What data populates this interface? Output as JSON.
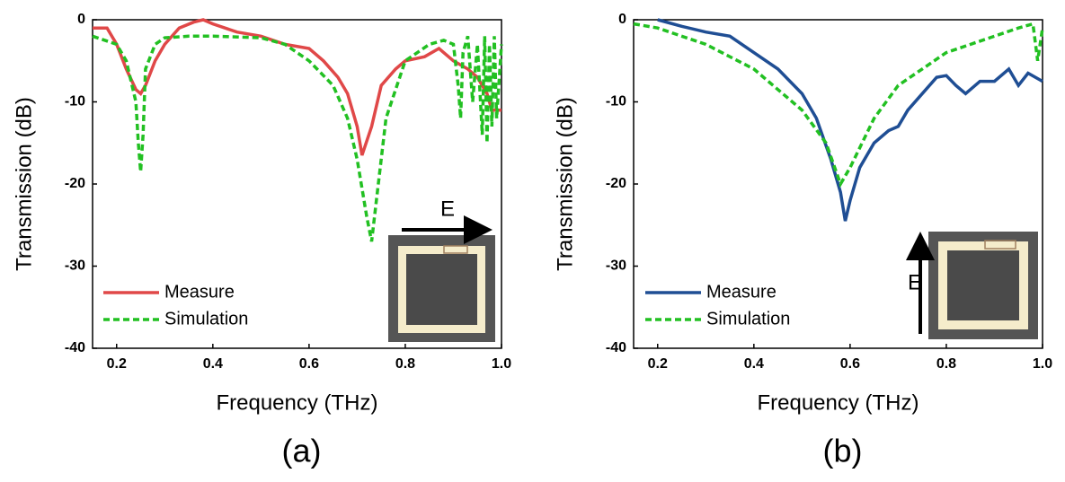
{
  "chart_data": [
    {
      "type": "line",
      "panel_label": "(a)",
      "field_label": "E",
      "xlabel": "Frequency (THz)",
      "ylabel": "Transmission (dB)",
      "xlim": [
        0.15,
        1.0
      ],
      "ylim": [
        -40,
        0
      ],
      "xticks": [
        0.2,
        0.4,
        0.6,
        0.8,
        {
          "value": 1.0,
          "label": "1.0"
        }
      ],
      "yticks": [
        -40,
        -30,
        -20,
        -10,
        0
      ],
      "series": [
        {
          "name": "Measure",
          "color": "#e04848",
          "dash": false,
          "x": [
            0.15,
            0.18,
            0.2,
            0.22,
            0.24,
            0.25,
            0.26,
            0.28,
            0.3,
            0.33,
            0.36,
            0.38,
            0.4,
            0.45,
            0.5,
            0.55,
            0.6,
            0.63,
            0.66,
            0.68,
            0.7,
            0.71,
            0.73,
            0.75,
            0.78,
            0.8,
            0.84,
            0.87,
            0.9,
            0.93,
            0.95,
            0.97,
            0.98,
            1.0
          ],
          "values": [
            -1,
            -1,
            -3,
            -6,
            -8.5,
            -9,
            -8,
            -5,
            -3,
            -1,
            -0.3,
            0,
            -0.5,
            -1.5,
            -2,
            -3,
            -3.5,
            -5,
            -7,
            -9,
            -13,
            -16.5,
            -13,
            -8,
            -6,
            -5,
            -4.5,
            -3.5,
            -5,
            -6,
            -7,
            -9,
            -11,
            -11
          ]
        },
        {
          "name": "Simulation",
          "color": "#22c022",
          "dash": true,
          "x": [
            0.15,
            0.2,
            0.22,
            0.24,
            0.245,
            0.25,
            0.255,
            0.26,
            0.28,
            0.3,
            0.35,
            0.4,
            0.5,
            0.55,
            0.6,
            0.65,
            0.68,
            0.7,
            0.72,
            0.73,
            0.74,
            0.76,
            0.8,
            0.85,
            0.88,
            0.9,
            0.91,
            0.915,
            0.92,
            0.93,
            0.94,
            0.95,
            0.96,
            0.965,
            0.97,
            0.975,
            0.98,
            0.985,
            0.99,
            1.0
          ],
          "values": [
            -2,
            -3,
            -5,
            -10,
            -15,
            -18.5,
            -14,
            -6,
            -3,
            -2.2,
            -2,
            -2,
            -2.2,
            -3,
            -5,
            -8,
            -12,
            -17,
            -24,
            -27,
            -22,
            -12,
            -5,
            -3,
            -2.5,
            -3,
            -8,
            -12,
            -4,
            -2,
            -10,
            -3,
            -14,
            -2,
            -15,
            -3,
            -13,
            -2,
            -12,
            -3
          ]
        }
      ]
    },
    {
      "type": "line",
      "panel_label": "(b)",
      "field_label": "E",
      "xlabel": "Frequency (THz)",
      "ylabel": "Transmission (dB)",
      "xlim": [
        0.15,
        1.0
      ],
      "ylim": [
        -40,
        0
      ],
      "xticks": [
        0.2,
        0.4,
        0.6,
        0.8,
        {
          "value": 1.0,
          "label": "1.0"
        }
      ],
      "yticks": [
        -40,
        -30,
        -20,
        -10,
        0
      ],
      "series": [
        {
          "name": "Measure",
          "color": "#1f4e94",
          "dash": false,
          "x": [
            0.2,
            0.25,
            0.3,
            0.35,
            0.4,
            0.45,
            0.5,
            0.53,
            0.56,
            0.58,
            0.59,
            0.6,
            0.62,
            0.65,
            0.68,
            0.7,
            0.72,
            0.75,
            0.78,
            0.8,
            0.82,
            0.84,
            0.87,
            0.9,
            0.93,
            0.95,
            0.97,
            1.0
          ],
          "values": [
            0,
            -0.8,
            -1.5,
            -2,
            -4,
            -6,
            -9,
            -12,
            -17,
            -21,
            -24.5,
            -22,
            -18,
            -15,
            -13.5,
            -13,
            -11,
            -9,
            -7,
            -6.8,
            -8,
            -9,
            -7.5,
            -7.5,
            -6,
            -8,
            -6.5,
            -7.5
          ]
        },
        {
          "name": "Simulation",
          "color": "#22c022",
          "dash": true,
          "x": [
            0.15,
            0.2,
            0.3,
            0.4,
            0.5,
            0.55,
            0.58,
            0.6,
            0.65,
            0.7,
            0.8,
            0.9,
            0.95,
            0.98,
            0.99,
            1.0
          ],
          "values": [
            -0.5,
            -1,
            -3,
            -6,
            -11,
            -15,
            -20,
            -18,
            -12,
            -8,
            -4,
            -2,
            -1,
            -0.5,
            -5,
            -1
          ]
        }
      ]
    }
  ]
}
